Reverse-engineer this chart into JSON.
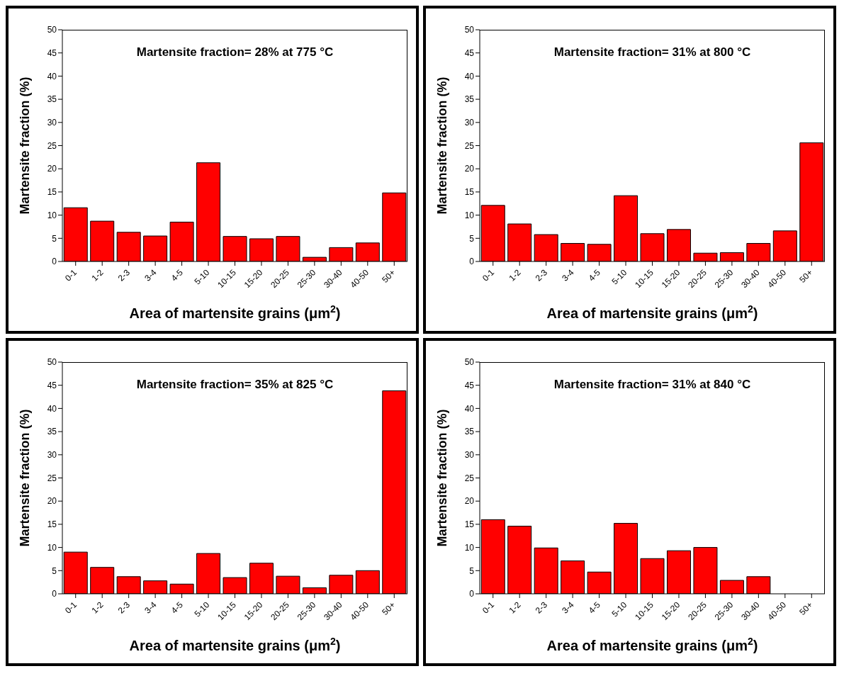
{
  "chart_data": [
    {
      "type": "bar",
      "title": "Martensite fraction= 28% at 775 °C",
      "xlabel": "Area of martensite grains (μm$^{2}$)",
      "ylabel": "Martensite fraction (%)",
      "categories": [
        "0-1",
        "1-2",
        "2-3",
        "3-4",
        "4-5",
        "5-10",
        "10-15",
        "15-20",
        "20-25",
        "25-30",
        "30-40",
        "40-50",
        "50+"
      ],
      "values": [
        11.6,
        8.7,
        6.3,
        5.5,
        8.5,
        21.3,
        5.4,
        4.9,
        5.4,
        0.9,
        3.0,
        4.0,
        14.8
      ],
      "color": "#ff0000",
      "ylim": [
        0,
        50
      ],
      "yticks": [
        0,
        5,
        10,
        15,
        20,
        25,
        30,
        35,
        40,
        45,
        50
      ]
    },
    {
      "type": "bar",
      "title": "Martensite fraction= 31% at 800 °C",
      "xlabel": "Area of martensite grains (μm$^{2}$)",
      "ylabel": "Martensite fraction (%)",
      "categories": [
        "0-1",
        "1-2",
        "2-3",
        "3-4",
        "4-5",
        "5-10",
        "10-15",
        "15-20",
        "20-25",
        "25-30",
        "30-40",
        "40-50",
        "50+"
      ],
      "values": [
        12.1,
        8.1,
        5.8,
        3.9,
        3.7,
        14.2,
        6.0,
        6.9,
        1.8,
        1.9,
        3.9,
        6.6,
        25.6
      ],
      "color": "#ff0000",
      "ylim": [
        0,
        50
      ],
      "yticks": [
        0,
        5,
        10,
        15,
        20,
        25,
        30,
        35,
        40,
        45,
        50
      ]
    },
    {
      "type": "bar",
      "title": "Martensite fraction= 35% at 825 °C",
      "xlabel": "Area of martensite grains (μm$^{2}$)",
      "ylabel": "Martensite fraction (%)",
      "categories": [
        "0-1",
        "1-2",
        "2-3",
        "3-4",
        "4-5",
        "5-10",
        "10-15",
        "15-20",
        "20-25",
        "25-30",
        "30-40",
        "40-50",
        "50+"
      ],
      "values": [
        9.0,
        5.7,
        3.7,
        2.8,
        2.1,
        8.7,
        3.5,
        6.6,
        3.8,
        1.3,
        4.0,
        5.0,
        43.8
      ],
      "color": "#ff0000",
      "ylim": [
        0,
        50
      ],
      "yticks": [
        0,
        5,
        10,
        15,
        20,
        25,
        30,
        35,
        40,
        45,
        50
      ]
    },
    {
      "type": "bar",
      "title": "Martensite fraction= 31% at 840 °C",
      "xlabel": "Area of martensite grains (μm$^{2}$)",
      "ylabel": "Martensite fraction (%)",
      "categories": [
        "0-1",
        "1-2",
        "2-3",
        "3-4",
        "4-5",
        "5-10",
        "10-15",
        "15-20",
        "20-25",
        "25-30",
        "30-40",
        "40-50",
        "50+"
      ],
      "values": [
        16.0,
        14.6,
        9.9,
        7.1,
        4.7,
        15.2,
        7.6,
        9.3,
        10.0,
        2.9,
        3.7,
        0,
        0
      ],
      "color": "#ff0000",
      "ylim": [
        0,
        50
      ],
      "yticks": [
        0,
        5,
        10,
        15,
        20,
        25,
        30,
        35,
        40,
        45,
        50
      ]
    }
  ]
}
